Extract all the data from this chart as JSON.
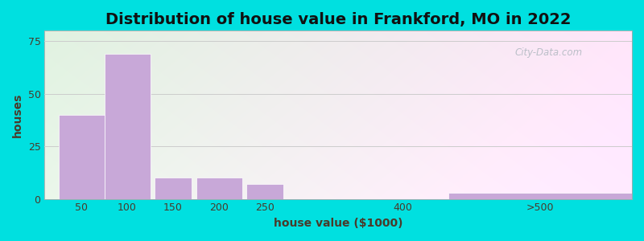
{
  "title": "Distribution of house value in Frankford, MO in 2022",
  "xlabel": "house value ($1000)",
  "ylabel": "houses",
  "bar_labels": [
    "50",
    "100",
    "150",
    "200",
    "250",
    "400",
    ">500"
  ],
  "bar_heights": [
    40,
    69,
    10,
    10,
    7,
    0,
    3
  ],
  "bar_color": "#c8a8d8",
  "bar_edge_color": "#ffffff",
  "background_outer": "#00e0e0",
  "yticks": [
    0,
    25,
    50,
    75
  ],
  "ylim": [
    0,
    80
  ],
  "title_fontsize": 14,
  "axis_label_fontsize": 10,
  "tick_fontsize": 9,
  "watermark_text": "City-Data.com",
  "title_color": "#111111",
  "label_color": "#4a3a2a",
  "tick_color": "#4a3a2a",
  "x_positions": [
    50,
    100,
    150,
    200,
    250,
    400,
    550
  ],
  "bar_widths": [
    50,
    50,
    40,
    50,
    40,
    0,
    200
  ],
  "xlim": [
    10,
    650
  ],
  "xtick_positions": [
    50,
    100,
    150,
    200,
    250,
    400,
    550
  ],
  "xtick_labels": [
    "50",
    "100",
    "150",
    "200",
    "250",
    "400",
    ">500"
  ]
}
